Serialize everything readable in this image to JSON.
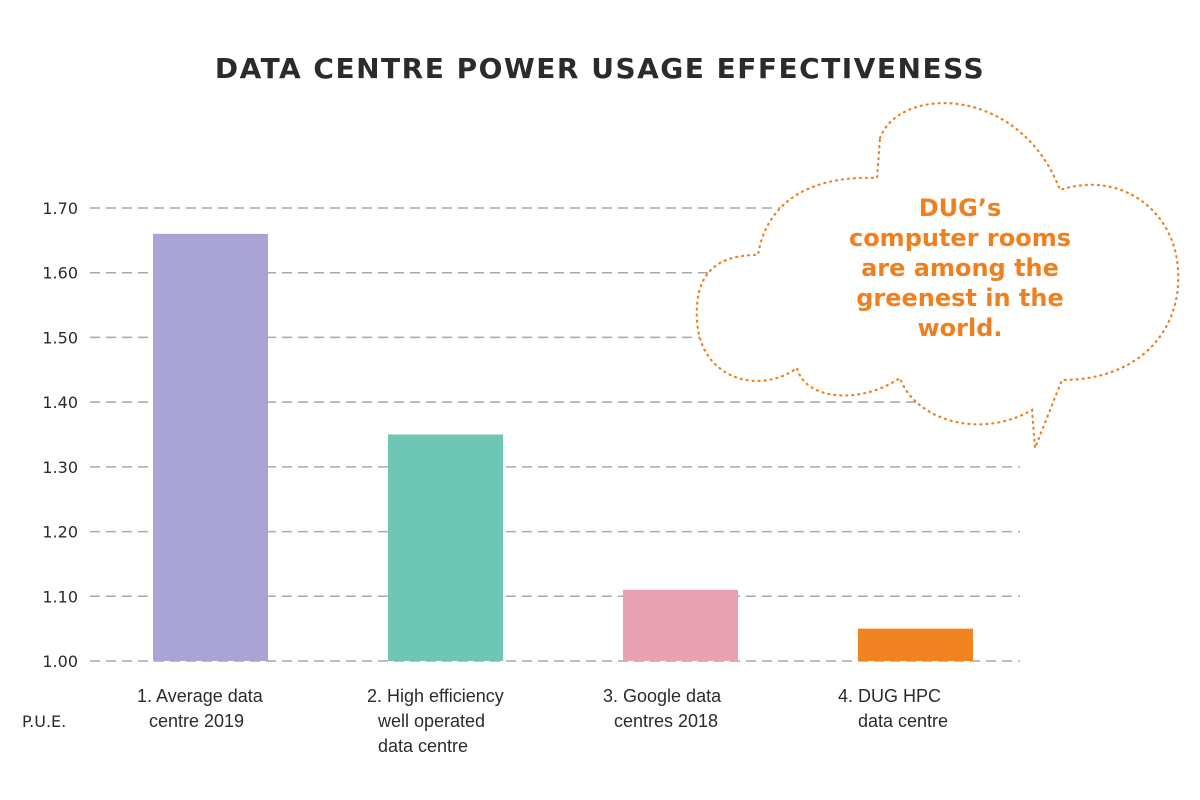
{
  "chart_data": {
    "type": "bar",
    "title": "DATA CENTRE POWER USAGE EFFECTIVENESS",
    "xlabel": "",
    "ylabel": "P.U.E.",
    "ylim": [
      1.0,
      1.7
    ],
    "yticks": [
      "1.00",
      "1.10",
      "1.20",
      "1.30",
      "1.40",
      "1.50",
      "1.60",
      "1.70"
    ],
    "ytick_values": [
      1.0,
      1.1,
      1.2,
      1.3,
      1.4,
      1.5,
      1.6,
      1.7
    ],
    "grid": true,
    "categories": [
      [
        "1. Average data",
        "centre 2019"
      ],
      [
        "2. High efficiency",
        "well operated",
        "data centre"
      ],
      [
        "3. Google data",
        "centres 2018"
      ],
      [
        "4. DUG HPC",
        "data centre"
      ]
    ],
    "values": [
      1.66,
      1.35,
      1.11,
      1.05
    ],
    "colors": [
      "#a9a4d3",
      "#6ec6b5",
      "#e8a1b0",
      "#f28321"
    ],
    "annotation": {
      "lines": [
        "DUG’s",
        "computer rooms",
        "are among the",
        "greenest in the",
        "world."
      ],
      "color": "#f0801f",
      "placement": "top-right cloud callout"
    }
  }
}
